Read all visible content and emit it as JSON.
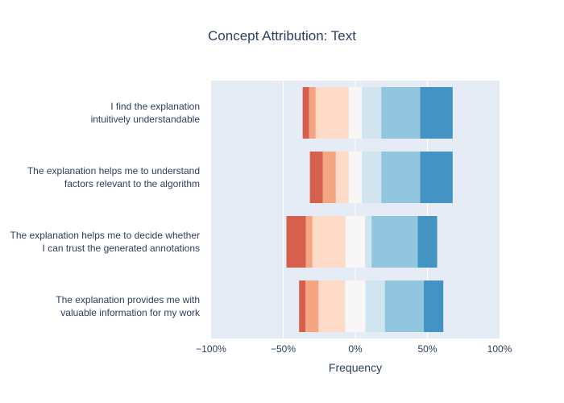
{
  "chart_data": {
    "type": "bar",
    "orientation": "horizontal",
    "barmode": "relative (diverging stacked)",
    "title": "Concept Attribution: Text",
    "xlabel": "Frequency",
    "ylabel": "",
    "xlim": [
      -100,
      100
    ],
    "x_ticks": [
      "−100%",
      "−50%",
      "0%",
      "50%",
      "100%"
    ],
    "x_tick_values": [
      -100,
      -50,
      0,
      50,
      100
    ],
    "grid": true,
    "plot_background": "#e5ecf6",
    "categories": [
      [
        "I find the explanation",
        "intuitively understandable"
      ],
      [
        "The explanation helps me to understand",
        "factors relevant to the algorithm"
      ],
      [
        "The explanation helps me to decide whether",
        "I can trust the generated annotations"
      ],
      [
        "The explanation provides me with",
        "valuable information for my work"
      ]
    ],
    "segment_colors": [
      "#d6604d",
      "#f4a582",
      "#fddbc7",
      "#f7f7f7",
      "#d1e5f0",
      "#92c5de",
      "#4393c3"
    ],
    "segments_percent": [
      [
        4.5,
        4.5,
        23,
        9,
        13.5,
        27,
        22.5
      ],
      [
        9,
        9,
        9,
        9,
        13.5,
        27,
        22.5
      ],
      [
        13.5,
        4.5,
        23,
        13.5,
        4.5,
        32,
        13.5
      ],
      [
        4.5,
        9,
        18.5,
        14,
        13.5,
        27,
        13.5
      ]
    ]
  }
}
